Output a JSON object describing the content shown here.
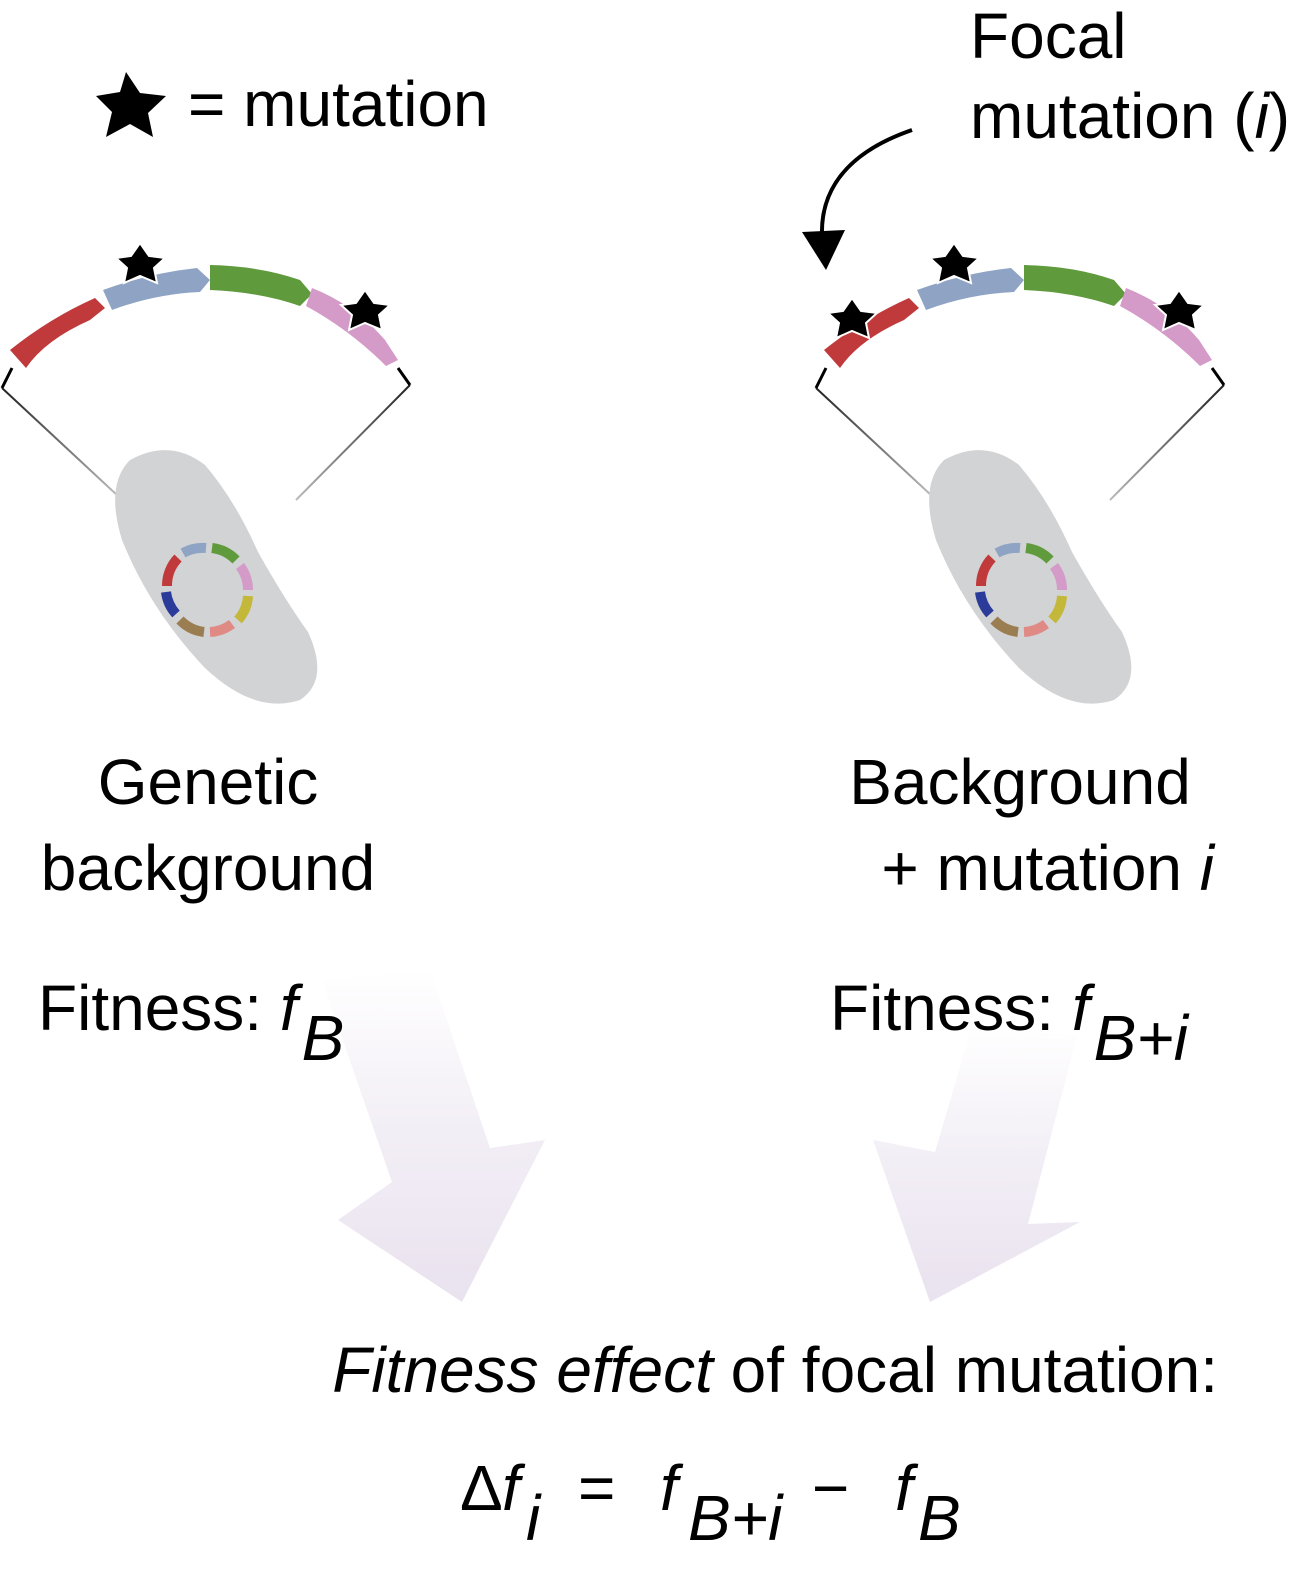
{
  "legend": {
    "star_meaning": "= mutation"
  },
  "focal_callout": {
    "line1": "Focal",
    "line2_main": "mutation (",
    "line2_var": "i",
    "line2_close": ")"
  },
  "left": {
    "label_line1": "Genetic",
    "label_line2": "background",
    "fitness_prefix": "Fitness: ",
    "fitness_var": "f",
    "fitness_sub": "B"
  },
  "right": {
    "label_line1": "Background",
    "label_line2_main": "+ mutation ",
    "label_line2_var": "i",
    "fitness_prefix": "Fitness: ",
    "fitness_var": "f",
    "fitness_sub": "B+i"
  },
  "effect": {
    "label_italic": "Fitness effect",
    "label_rest": " of focal mutation:",
    "delta": "Δ",
    "f": "f",
    "sub_i": "i",
    "equals": "=",
    "sub_bi": "B+i",
    "minus": "−",
    "sub_b": "B"
  },
  "colors": {
    "gene_red": "#c0393b",
    "gene_blue_gray": "#8fa4c4",
    "gene_green": "#5f9a3c",
    "gene_pink": "#d49ac8",
    "gene_dark_blue": "#2b3b9a",
    "gene_yellow": "#c4b83a",
    "gene_brown": "#9a7d50",
    "gene_salmon": "#e08a86",
    "cell_gray": "#d2d3d5",
    "arrow_lavender": "#ece6f1",
    "star": "#000000"
  }
}
